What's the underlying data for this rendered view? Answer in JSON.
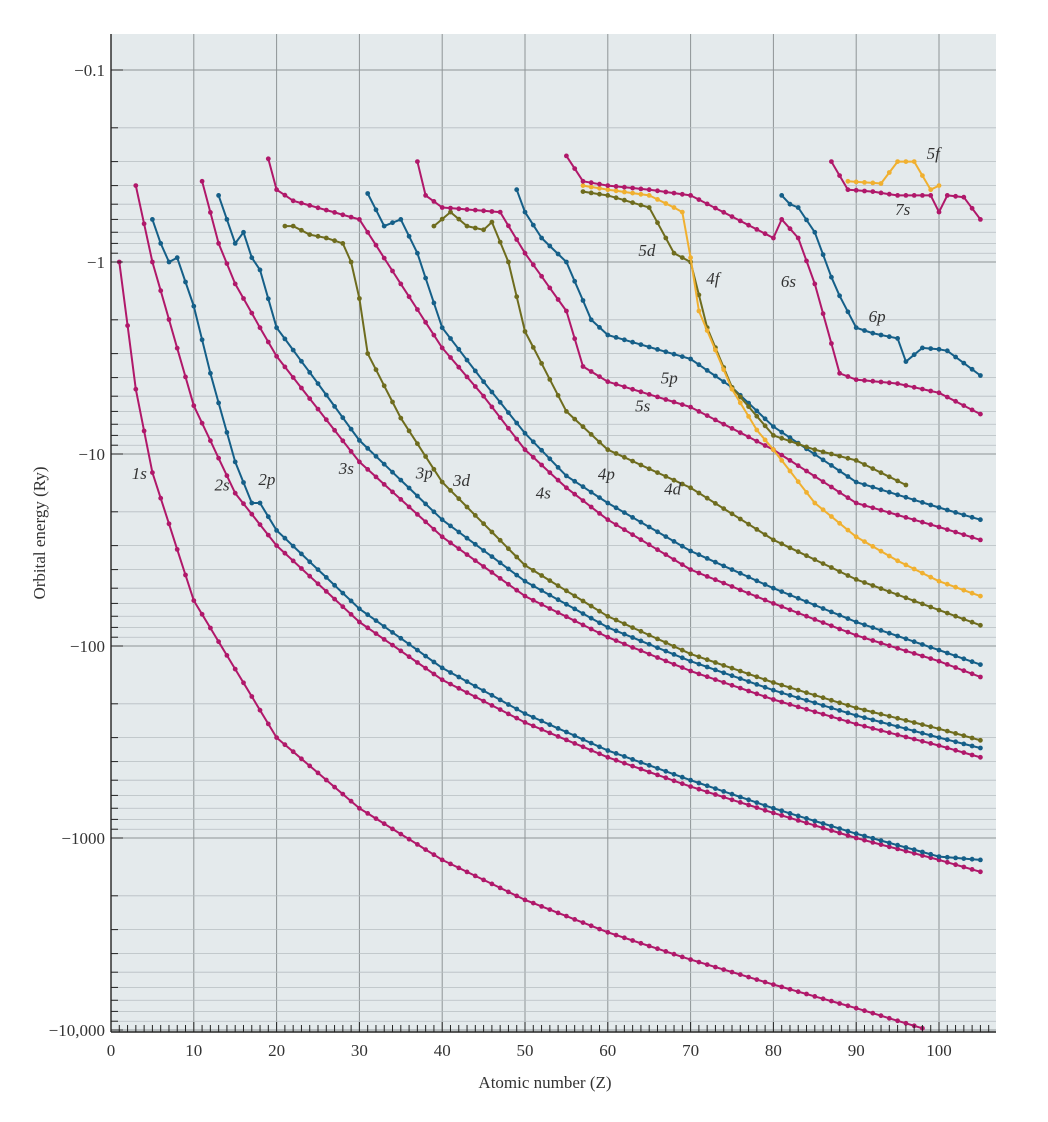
{
  "chart_data": {
    "type": "line",
    "title": "",
    "xlabel": "Atomic number (Z)",
    "ylabel": "Orbital energy (Ry)",
    "xlim": [
      0,
      106
    ],
    "ylim": [
      -10000,
      -0.075
    ],
    "yscale": "symlog-negative",
    "xticks": [
      0,
      10,
      20,
      30,
      40,
      50,
      60,
      70,
      80,
      90,
      100
    ],
    "xtick_labels": [
      "0",
      "10",
      "20",
      "30",
      "40",
      "50",
      "60",
      "70",
      "80",
      "90",
      "100"
    ],
    "yticks": [
      -0.1,
      -1,
      -10,
      -100,
      -1000,
      -10000
    ],
    "ytick_labels": [
      "−0.1",
      "−1",
      "−10",
      "−100",
      "−1000",
      "−10,000"
    ],
    "grid": true,
    "colors": {
      "s": "#b0186a",
      "p": "#155f88",
      "d": "#6e6c1e",
      "f": "#f0b030",
      "plot_bg": "#e4eaec",
      "grid": "#8e9496"
    },
    "series": [
      {
        "name": "1s",
        "kind": "s",
        "points": [
          [
            1,
            -1
          ],
          [
            3,
            -4.6
          ],
          [
            5,
            -12.5
          ],
          [
            10,
            -58
          ],
          [
            20,
            -300
          ],
          [
            30,
            -700
          ],
          [
            40,
            -1300
          ],
          [
            50,
            -2100
          ],
          [
            60,
            -3100
          ],
          [
            70,
            -4300
          ],
          [
            80,
            -5800
          ],
          [
            90,
            -7700
          ],
          [
            98,
            -9800
          ]
        ]
      },
      {
        "name": "2s",
        "kind": "s",
        "points": [
          [
            3,
            -0.4
          ],
          [
            5,
            -1.0
          ],
          [
            10,
            -5.6
          ],
          [
            15,
            -16
          ],
          [
            20,
            -30
          ],
          [
            30,
            -75
          ],
          [
            40,
            -150
          ],
          [
            50,
            -250
          ],
          [
            60,
            -380
          ],
          [
            70,
            -540
          ],
          [
            80,
            -740
          ],
          [
            90,
            -1000
          ],
          [
            100,
            -1300
          ],
          [
            105,
            -1500
          ]
        ]
      },
      {
        "name": "2p",
        "kind": "p",
        "points": [
          [
            5,
            -0.6
          ],
          [
            6,
            -0.8
          ],
          [
            7,
            -1.0
          ],
          [
            8,
            -0.95
          ],
          [
            10,
            -1.7
          ],
          [
            12,
            -3.8
          ],
          [
            15,
            -11
          ],
          [
            17,
            -18
          ],
          [
            18,
            -18
          ],
          [
            20,
            -25
          ],
          [
            30,
            -64
          ],
          [
            40,
            -130
          ],
          [
            50,
            -225
          ],
          [
            60,
            -350
          ],
          [
            70,
            -500
          ],
          [
            80,
            -700
          ],
          [
            90,
            -950
          ],
          [
            100,
            -1250
          ],
          [
            105,
            -1300
          ]
        ]
      },
      {
        "name": "3s",
        "kind": "s",
        "points": [
          [
            11,
            -0.38
          ],
          [
            13,
            -0.8
          ],
          [
            15,
            -1.3
          ],
          [
            18,
            -2.2
          ],
          [
            20,
            -3.1
          ],
          [
            30,
            -11
          ],
          [
            40,
            -27
          ],
          [
            50,
            -55
          ],
          [
            60,
            -90
          ],
          [
            70,
            -135
          ],
          [
            80,
            -190
          ],
          [
            90,
            -255
          ],
          [
            100,
            -330
          ],
          [
            105,
            -380
          ]
        ]
      },
      {
        "name": "3p",
        "kind": "p",
        "points": [
          [
            13,
            -0.45
          ],
          [
            15,
            -0.8
          ],
          [
            16,
            -0.7
          ],
          [
            17,
            -0.95
          ],
          [
            18,
            -1.1
          ],
          [
            20,
            -2.2
          ],
          [
            25,
            -4.3
          ],
          [
            30,
            -8.5
          ],
          [
            40,
            -22
          ],
          [
            50,
            -46
          ],
          [
            60,
            -80
          ],
          [
            70,
            -120
          ],
          [
            80,
            -170
          ],
          [
            90,
            -230
          ],
          [
            100,
            -300
          ],
          [
            105,
            -340
          ]
        ]
      },
      {
        "name": "3d",
        "kind": "d",
        "points": [
          [
            21,
            -0.65
          ],
          [
            22,
            -0.65
          ],
          [
            24,
            -0.72
          ],
          [
            26,
            -0.75
          ],
          [
            28,
            -0.8
          ],
          [
            29,
            -1.0
          ],
          [
            30,
            -1.55
          ],
          [
            31,
            -3.0
          ],
          [
            35,
            -6.5
          ],
          [
            40,
            -14
          ],
          [
            50,
            -38
          ],
          [
            60,
            -70
          ],
          [
            70,
            -110
          ],
          [
            80,
            -155
          ],
          [
            90,
            -210
          ],
          [
            100,
            -270
          ],
          [
            105,
            -310
          ]
        ]
      },
      {
        "name": "4s",
        "kind": "s",
        "points": [
          [
            19,
            -0.29
          ],
          [
            20,
            -0.42
          ],
          [
            22,
            -0.48
          ],
          [
            30,
            -0.6
          ],
          [
            35,
            -1.3
          ],
          [
            40,
            -2.8
          ],
          [
            45,
            -5
          ],
          [
            50,
            -9.5
          ],
          [
            55,
            -15
          ],
          [
            60,
            -22
          ],
          [
            70,
            -40
          ],
          [
            80,
            -60
          ],
          [
            90,
            -88
          ],
          [
            100,
            -120
          ],
          [
            105,
            -145
          ]
        ]
      },
      {
        "name": "4p",
        "kind": "p",
        "points": [
          [
            31,
            -0.44
          ],
          [
            33,
            -0.65
          ],
          [
            35,
            -0.6
          ],
          [
            37,
            -0.9
          ],
          [
            40,
            -2.2
          ],
          [
            45,
            -4.2
          ],
          [
            50,
            -7.8
          ],
          [
            55,
            -13
          ],
          [
            60,
            -18
          ],
          [
            70,
            -32
          ],
          [
            80,
            -50
          ],
          [
            90,
            -75
          ],
          [
            100,
            -105
          ],
          [
            105,
            -125
          ]
        ]
      },
      {
        "name": "4d",
        "kind": "d",
        "points": [
          [
            39,
            -0.65
          ],
          [
            41,
            -0.55
          ],
          [
            43,
            -0.65
          ],
          [
            45,
            -0.68
          ],
          [
            46,
            -0.62
          ],
          [
            48,
            -1.0
          ],
          [
            50,
            -2.3
          ],
          [
            55,
            -6
          ],
          [
            60,
            -9.5
          ],
          [
            70,
            -15
          ],
          [
            80,
            -28
          ],
          [
            90,
            -45
          ],
          [
            100,
            -65
          ],
          [
            105,
            -78
          ]
        ]
      },
      {
        "name": "5s",
        "kind": "s",
        "points": [
          [
            37,
            -0.3
          ],
          [
            38,
            -0.45
          ],
          [
            40,
            -0.52
          ],
          [
            47,
            -0.55
          ],
          [
            50,
            -0.9
          ],
          [
            55,
            -1.8
          ],
          [
            57,
            -3.5
          ],
          [
            60,
            -4.2
          ],
          [
            70,
            -5.7
          ],
          [
            80,
            -9.5
          ],
          [
            90,
            -18
          ],
          [
            100,
            -24
          ],
          [
            105,
            -28
          ]
        ]
      },
      {
        "name": "5p",
        "kind": "p",
        "points": [
          [
            49,
            -0.42
          ],
          [
            50,
            -0.55
          ],
          [
            52,
            -0.75
          ],
          [
            55,
            -1.0
          ],
          [
            58,
            -2.0
          ],
          [
            60,
            -2.4
          ],
          [
            70,
            -3.2
          ],
          [
            75,
            -4.5
          ],
          [
            80,
            -7.2
          ],
          [
            90,
            -14
          ],
          [
            100,
            -19
          ],
          [
            105,
            -22
          ]
        ]
      },
      {
        "name": "5d",
        "kind": "d",
        "points": [
          [
            57,
            -0.43
          ],
          [
            60,
            -0.45
          ],
          [
            65,
            -0.52
          ],
          [
            67,
            -0.75
          ],
          [
            68,
            -0.9
          ],
          [
            70,
            -1.0
          ],
          [
            72,
            -2.2
          ],
          [
            75,
            -4.5
          ],
          [
            80,
            -8
          ],
          [
            85,
            -9.5
          ],
          [
            90,
            -10.8
          ],
          [
            96,
            -14.5
          ]
        ]
      },
      {
        "name": "4f",
        "kind": "f",
        "points": [
          [
            57,
            -0.4
          ],
          [
            60,
            -0.42
          ],
          [
            65,
            -0.45
          ],
          [
            68,
            -0.52
          ],
          [
            69,
            -0.55
          ],
          [
            70,
            -0.95
          ],
          [
            71,
            -1.8
          ],
          [
            75,
            -4.6
          ],
          [
            78,
            -7.5
          ],
          [
            80,
            -9.5
          ],
          [
            85,
            -18
          ],
          [
            90,
            -27
          ],
          [
            95,
            -36
          ],
          [
            100,
            -46
          ],
          [
            105,
            -55
          ]
        ]
      },
      {
        "name": "6s",
        "kind": "s",
        "points": [
          [
            55,
            -0.28
          ],
          [
            57,
            -0.38
          ],
          [
            60,
            -0.4
          ],
          [
            65,
            -0.42
          ],
          [
            70,
            -0.45
          ],
          [
            75,
            -0.58
          ],
          [
            80,
            -0.75
          ],
          [
            81,
            -0.6
          ],
          [
            83,
            -0.75
          ],
          [
            85,
            -1.3
          ],
          [
            88,
            -3.8
          ],
          [
            90,
            -4.1
          ],
          [
            95,
            -4.3
          ],
          [
            100,
            -4.8
          ],
          [
            105,
            -6.2
          ]
        ]
      },
      {
        "name": "6p",
        "kind": "p",
        "points": [
          [
            81,
            -0.45
          ],
          [
            82,
            -0.5
          ],
          [
            83,
            -0.52
          ],
          [
            85,
            -0.7
          ],
          [
            87,
            -1.2
          ],
          [
            88,
            -1.5
          ],
          [
            90,
            -2.2
          ],
          [
            92,
            -2.35
          ],
          [
            95,
            -2.5
          ],
          [
            96,
            -3.3
          ],
          [
            98,
            -2.8
          ],
          [
            100,
            -2.85
          ],
          [
            101,
            -2.9
          ],
          [
            105,
            -3.9
          ]
        ]
      },
      {
        "name": "7s",
        "kind": "s",
        "points": [
          [
            87,
            -0.3
          ],
          [
            89,
            -0.42
          ],
          [
            92,
            -0.43
          ],
          [
            95,
            -0.45
          ],
          [
            99,
            -0.45
          ],
          [
            100,
            -0.55
          ],
          [
            101,
            -0.45
          ],
          [
            103,
            -0.46
          ],
          [
            105,
            -0.6
          ]
        ]
      },
      {
        "name": "5f",
        "kind": "f",
        "points": [
          [
            89,
            -0.38
          ],
          [
            93,
            -0.39
          ],
          [
            95,
            -0.3
          ],
          [
            97,
            -0.3
          ],
          [
            99,
            -0.42
          ],
          [
            100,
            -0.4
          ]
        ]
      }
    ],
    "labels": [
      {
        "text": "1s",
        "x": 2.5,
        "y": -13.5
      },
      {
        "text": "2s",
        "x": 12.5,
        "y": -15.5
      },
      {
        "text": "2p",
        "x": 17.8,
        "y": -14.5
      },
      {
        "text": "3s",
        "x": 27.5,
        "y": -12.7
      },
      {
        "text": "3p",
        "x": 36.8,
        "y": -13.4
      },
      {
        "text": "3d",
        "x": 41.3,
        "y": -14.7
      },
      {
        "text": "4s",
        "x": 51.3,
        "y": -17.1
      },
      {
        "text": "4p",
        "x": 58.8,
        "y": -13.6
      },
      {
        "text": "4d",
        "x": 66.8,
        "y": -16.3
      },
      {
        "text": "5s",
        "x": 63.3,
        "y": -6.0
      },
      {
        "text": "5p",
        "x": 66.4,
        "y": -4.3
      },
      {
        "text": "5d",
        "x": 63.7,
        "y": -0.93
      },
      {
        "text": "4f",
        "x": 71.9,
        "y": -1.3
      },
      {
        "text": "6s",
        "x": 80.9,
        "y": -1.35
      },
      {
        "text": "6p",
        "x": 91.5,
        "y": -2.05
      },
      {
        "text": "7s",
        "x": 94.7,
        "y": -0.57
      },
      {
        "text": "5f",
        "x": 98.5,
        "y": -0.29
      }
    ]
  }
}
